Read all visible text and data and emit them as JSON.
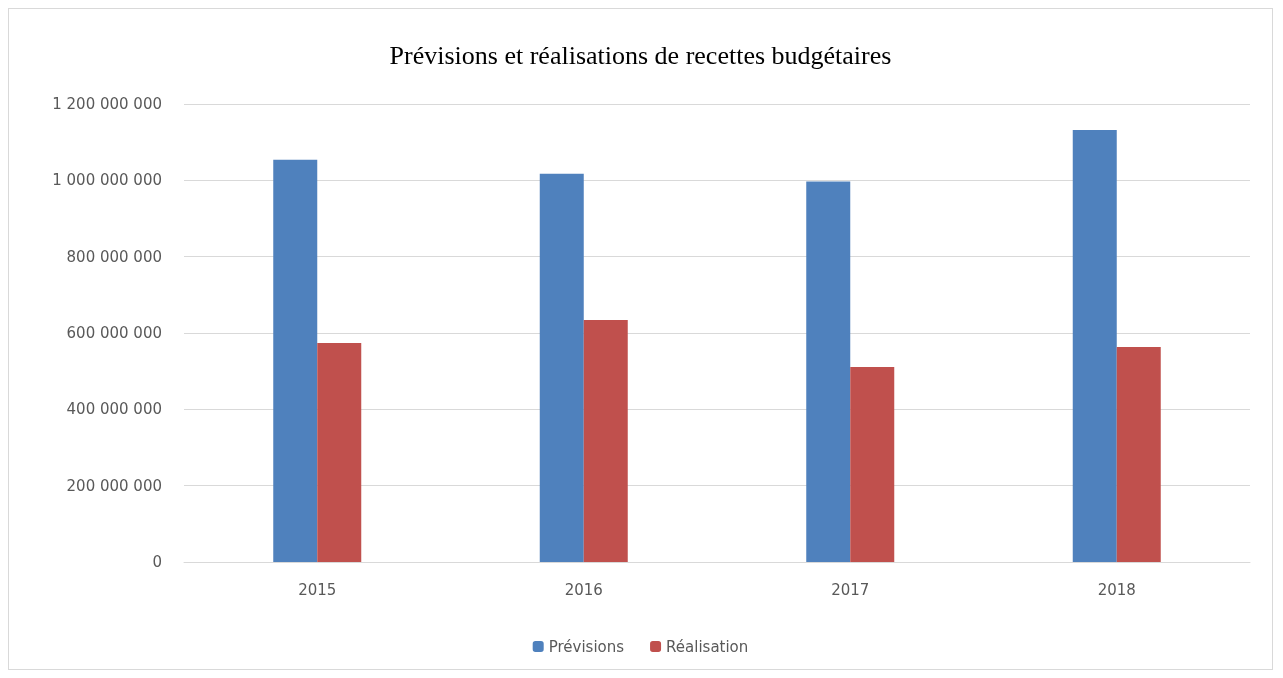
{
  "chart_data": {
    "type": "bar",
    "title": "Prévisions et réalisations de recettes budgétaires",
    "categories": [
      "2015",
      "2016",
      "2017",
      "2018"
    ],
    "series": [
      {
        "name": "Prévisions",
        "color": "#4f81bd",
        "values": [
          1054000000,
          1017000000,
          997000000,
          1132000000
        ]
      },
      {
        "name": "Réalisation",
        "color": "#c0504d",
        "values": [
          574000000,
          634000000,
          511000000,
          563000000
        ]
      }
    ],
    "ylim": [
      0,
      1200000000
    ],
    "yticks": [
      {
        "value": 0,
        "label": "0"
      },
      {
        "value": 200000000,
        "label": "200 000 000"
      },
      {
        "value": 400000000,
        "label": "400 000 000"
      },
      {
        "value": 600000000,
        "label": "600 000 000"
      },
      {
        "value": 800000000,
        "label": "800 000 000"
      },
      {
        "value": 1000000000,
        "label": "1 000 000 000"
      },
      {
        "value": 1200000000,
        "label": "1 200 000 000"
      }
    ],
    "grid": "y",
    "legend": "bottom"
  }
}
